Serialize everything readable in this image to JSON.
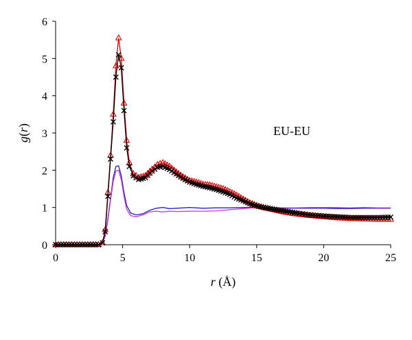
{
  "chart_data": {
    "type": "line",
    "annotation": "EU-EU",
    "xlabel": {
      "var": "r",
      "unit": " (Å)"
    },
    "ylabel": {
      "func": "g",
      "open": "(",
      "var": "r",
      "close": ")"
    },
    "xlim": [
      0,
      25
    ],
    "ylim": [
      0,
      6
    ],
    "xticks": [
      "0",
      "5",
      "10",
      "15",
      "20",
      "25"
    ],
    "yticks": [
      "0",
      "1",
      "2",
      "3",
      "4",
      "5",
      "6"
    ],
    "grid": false,
    "legend": "none",
    "series": [
      {
        "color": "#2020c8",
        "marker": "none",
        "points": [
          [
            0,
            0
          ],
          [
            3.2,
            0
          ],
          [
            3.5,
            0.05
          ],
          [
            3.7,
            0.25
          ],
          [
            3.9,
            0.7
          ],
          [
            4.1,
            1.25
          ],
          [
            4.3,
            1.8
          ],
          [
            4.5,
            2.1
          ],
          [
            4.7,
            2.12
          ],
          [
            4.9,
            1.85
          ],
          [
            5.1,
            1.4
          ],
          [
            5.3,
            1.05
          ],
          [
            5.6,
            0.85
          ],
          [
            6.0,
            0.8
          ],
          [
            6.5,
            0.83
          ],
          [
            7.0,
            0.92
          ],
          [
            7.5,
            0.98
          ],
          [
            8.0,
            1.0
          ],
          [
            8.5,
            0.97
          ],
          [
            9.0,
            0.98
          ],
          [
            10.0,
            1.0
          ],
          [
            11.0,
            0.98
          ],
          [
            12.0,
            0.99
          ],
          [
            13.0,
            0.99
          ],
          [
            14.0,
            1.0
          ],
          [
            15.0,
            1.0
          ],
          [
            16.0,
            0.99
          ],
          [
            17.0,
            0.98
          ],
          [
            18.0,
            0.98
          ],
          [
            19.0,
            0.98
          ],
          [
            20.0,
            0.98
          ],
          [
            21.0,
            0.97
          ],
          [
            22.0,
            0.97
          ],
          [
            23.0,
            0.98
          ],
          [
            24.0,
            0.98
          ],
          [
            25.0,
            0.98
          ]
        ]
      },
      {
        "color": "#cc33cc",
        "marker": "none",
        "points": [
          [
            0,
            0
          ],
          [
            3.2,
            0
          ],
          [
            3.5,
            0.05
          ],
          [
            3.7,
            0.22
          ],
          [
            3.9,
            0.65
          ],
          [
            4.1,
            1.2
          ],
          [
            4.3,
            1.7
          ],
          [
            4.5,
            1.98
          ],
          [
            4.7,
            2.0
          ],
          [
            4.9,
            1.75
          ],
          [
            5.1,
            1.3
          ],
          [
            5.3,
            0.95
          ],
          [
            5.6,
            0.78
          ],
          [
            6.0,
            0.75
          ],
          [
            6.5,
            0.8
          ],
          [
            7.0,
            0.88
          ],
          [
            7.5,
            0.9
          ],
          [
            8.0,
            0.88
          ],
          [
            8.5,
            0.9
          ],
          [
            9.0,
            0.89
          ],
          [
            10.0,
            0.9
          ],
          [
            11.0,
            0.9
          ],
          [
            12.0,
            0.91
          ],
          [
            13.0,
            0.94
          ],
          [
            14.0,
            0.97
          ],
          [
            15.0,
            1.0
          ],
          [
            16.0,
            0.99
          ],
          [
            17.0,
            0.99
          ],
          [
            18.0,
            0.99
          ],
          [
            19.0,
            1.0
          ],
          [
            20.0,
            1.0
          ],
          [
            21.0,
            1.0
          ],
          [
            22.0,
            0.99
          ],
          [
            23.0,
            1.0
          ],
          [
            24.0,
            0.99
          ],
          [
            25.0,
            0.99
          ]
        ]
      },
      {
        "color": "#e00000",
        "marker": "triangle",
        "points": [
          [
            0,
            0
          ],
          [
            3.2,
            0
          ],
          [
            3.5,
            0.05
          ],
          [
            3.7,
            0.4
          ],
          [
            3.9,
            1.4
          ],
          [
            4.1,
            2.4
          ],
          [
            4.3,
            3.5
          ],
          [
            4.5,
            4.8
          ],
          [
            4.7,
            5.55
          ],
          [
            4.9,
            5.0
          ],
          [
            5.1,
            3.8
          ],
          [
            5.3,
            2.8
          ],
          [
            5.5,
            2.2
          ],
          [
            5.8,
            1.9
          ],
          [
            6.2,
            1.8
          ],
          [
            6.7,
            1.85
          ],
          [
            7.2,
            2.02
          ],
          [
            7.6,
            2.15
          ],
          [
            8.0,
            2.2
          ],
          [
            8.5,
            2.1
          ],
          [
            9.0,
            1.95
          ],
          [
            9.5,
            1.82
          ],
          [
            10.0,
            1.72
          ],
          [
            10.5,
            1.68
          ],
          [
            11.0,
            1.62
          ],
          [
            11.5,
            1.6
          ],
          [
            12.0,
            1.55
          ],
          [
            12.5,
            1.5
          ],
          [
            13.0,
            1.42
          ],
          [
            13.5,
            1.33
          ],
          [
            14.0,
            1.22
          ],
          [
            14.5,
            1.12
          ],
          [
            15.0,
            1.05
          ],
          [
            15.5,
            1.0
          ],
          [
            16.0,
            0.96
          ],
          [
            16.5,
            0.92
          ],
          [
            17.0,
            0.88
          ],
          [
            17.5,
            0.85
          ],
          [
            18.0,
            0.82
          ],
          [
            19.0,
            0.78
          ],
          [
            20.0,
            0.75
          ],
          [
            21.0,
            0.72
          ],
          [
            22.0,
            0.7
          ],
          [
            23.0,
            0.69
          ],
          [
            24.0,
            0.68
          ],
          [
            25.0,
            0.68
          ]
        ]
      },
      {
        "color": "#000000",
        "marker": "cross",
        "points": [
          [
            0,
            0
          ],
          [
            3.2,
            0
          ],
          [
            3.5,
            0.05
          ],
          [
            3.7,
            0.35
          ],
          [
            3.9,
            1.3
          ],
          [
            4.1,
            2.3
          ],
          [
            4.3,
            3.3
          ],
          [
            4.5,
            4.5
          ],
          [
            4.7,
            5.1
          ],
          [
            4.9,
            4.75
          ],
          [
            5.1,
            3.6
          ],
          [
            5.3,
            2.6
          ],
          [
            5.5,
            2.1
          ],
          [
            5.8,
            1.85
          ],
          [
            6.2,
            1.75
          ],
          [
            6.7,
            1.8
          ],
          [
            7.2,
            1.98
          ],
          [
            7.6,
            2.08
          ],
          [
            8.0,
            2.1
          ],
          [
            8.5,
            2.02
          ],
          [
            9.0,
            1.9
          ],
          [
            9.5,
            1.78
          ],
          [
            10.0,
            1.68
          ],
          [
            10.5,
            1.62
          ],
          [
            11.0,
            1.57
          ],
          [
            11.5,
            1.53
          ],
          [
            12.0,
            1.48
          ],
          [
            12.5,
            1.42
          ],
          [
            13.0,
            1.35
          ],
          [
            13.5,
            1.25
          ],
          [
            14.0,
            1.18
          ],
          [
            14.5,
            1.1
          ],
          [
            15.0,
            1.04
          ],
          [
            15.5,
            1.0
          ],
          [
            16.0,
            0.97
          ],
          [
            16.5,
            0.94
          ],
          [
            17.0,
            0.91
          ],
          [
            17.5,
            0.88
          ],
          [
            18.0,
            0.85
          ],
          [
            19.0,
            0.8
          ],
          [
            20.0,
            0.77
          ],
          [
            21.0,
            0.75
          ],
          [
            22.0,
            0.73
          ],
          [
            23.0,
            0.73
          ],
          [
            24.0,
            0.73
          ],
          [
            25.0,
            0.74
          ]
        ]
      }
    ]
  }
}
